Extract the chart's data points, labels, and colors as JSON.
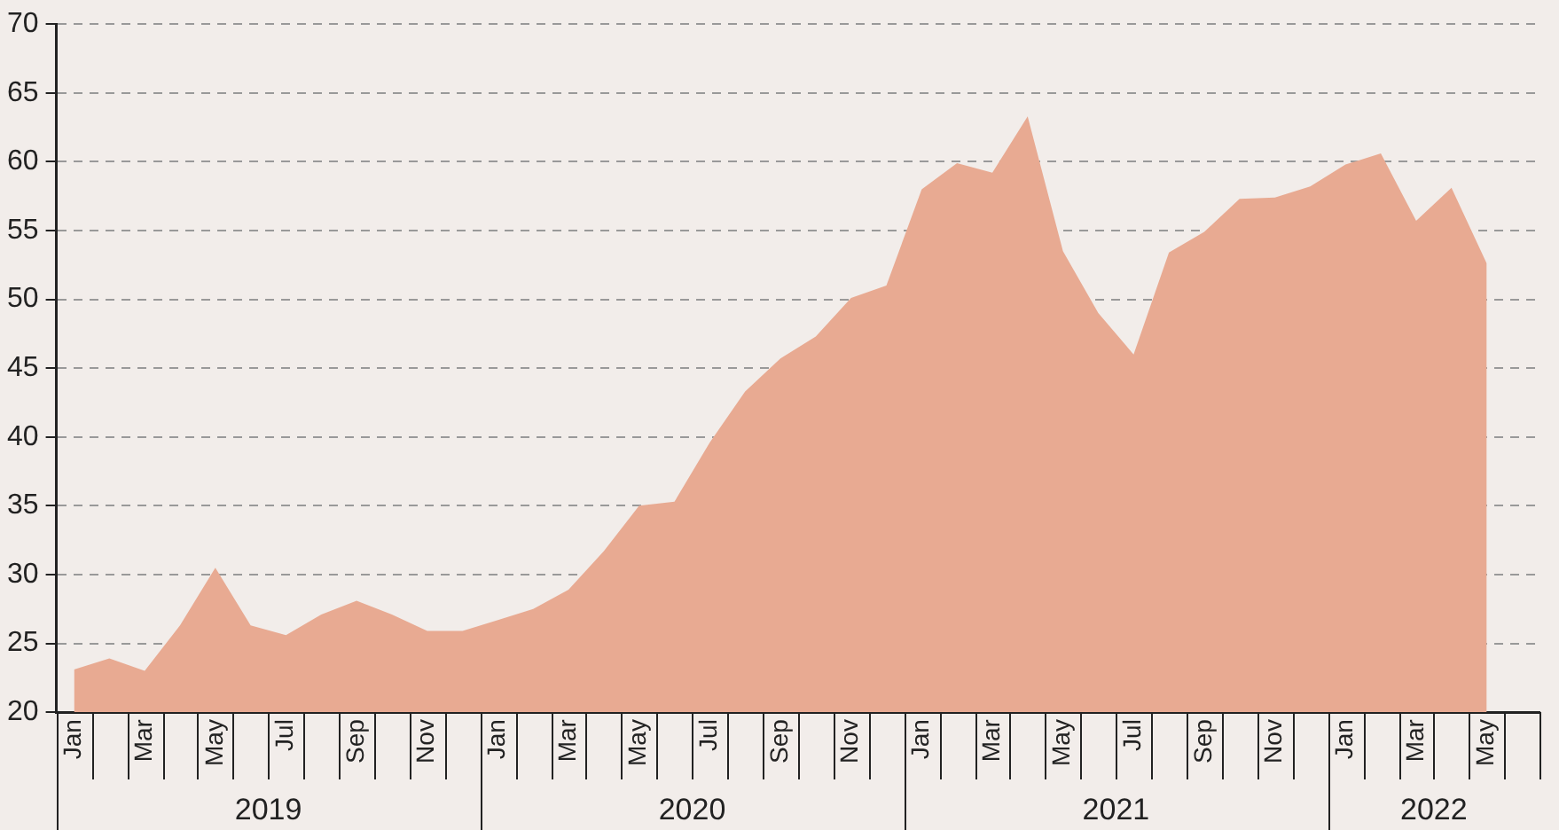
{
  "chart_data": {
    "type": "area",
    "categories": [
      "Jan",
      null,
      "Mar",
      null,
      "May",
      null,
      "Jul",
      null,
      "Sep",
      null,
      "Nov",
      null,
      "Jan",
      null,
      "Mar",
      null,
      "May",
      null,
      "Jul",
      null,
      "Sep",
      null,
      "Nov",
      null,
      "Jan",
      null,
      "Mar",
      null,
      "May",
      null,
      "Jul",
      null,
      "Sep",
      null,
      "Nov",
      null,
      "Jan",
      null,
      "Mar",
      null,
      "May",
      null
    ],
    "series": [
      {
        "color": "#e8aa92",
        "values": [
          23.1,
          23.9,
          23.0,
          26.3,
          30.5,
          26.3,
          25.6,
          27.1,
          28.1,
          27.1,
          25.9,
          25.9,
          26.7,
          27.5,
          28.9,
          31.7,
          35.0,
          35.3,
          39.6,
          43.3,
          45.7,
          47.3,
          50.1,
          51.0,
          58.0,
          59.9,
          59.2,
          63.3,
          53.5,
          49.0,
          46.0,
          53.4,
          54.9,
          57.3,
          57.4,
          58.2,
          59.8,
          60.6,
          55.7,
          58.1,
          52.6,
          null
        ]
      }
    ],
    "annotations": [
      "2019",
      "2020",
      "2021",
      "2022"
    ],
    "ylim": [
      20,
      70
    ],
    "yticks": [
      20,
      25,
      30,
      35,
      40,
      45,
      50,
      55,
      60,
      65,
      70
    ],
    "grid": "y",
    "legend": false
  }
}
